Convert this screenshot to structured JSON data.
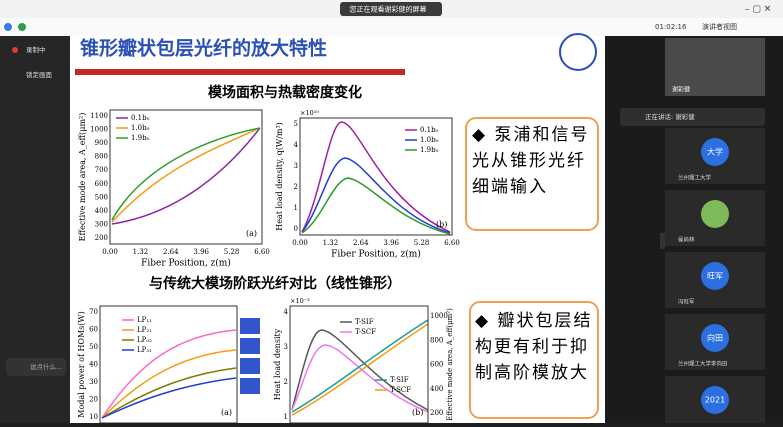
{
  "topbar": {
    "notice": "您正在观看谢彩健的屏幕",
    "timer": "01:02:16",
    "view": "演讲者视图"
  },
  "sidebar": {
    "recording": "录制中",
    "lock": "锁定画面",
    "comment": "说点什么..."
  },
  "slide": {
    "title": "锥形瓣状包层光纤的放大特性",
    "heading1": "模场面积与热载密度变化",
    "heading2": "与传统大模场阶跃光纤对比（线性锥形）",
    "note1": "◆ 泵浦和信号光从锥形光纤细端输入",
    "note2": "◆ 瓣状包层结构更有利于抑制高阶模放大",
    "plot_a": {
      "ylabel": "Effective mode area, A_eff(μm²)",
      "xlabel": "Fiber Position, z(m)",
      "yticks": [
        "200",
        "300",
        "400",
        "500",
        "600",
        "700",
        "800",
        "900",
        "1000",
        "1100"
      ],
      "xticks": [
        "0.00",
        "1.32",
        "2.64",
        "3.96",
        "5.28",
        "6.60"
      ],
      "legend": [
        "0.1b₀",
        "1.0b₀",
        "1.9b₀"
      ],
      "tag": "(a)"
    },
    "plot_b": {
      "ylabel": "Heat load density, q(W/m³)",
      "xlabel": "Fiber Position, z(m)",
      "scale": "×10¹⁰",
      "yticks": [
        "0",
        "1",
        "2",
        "3",
        "4",
        "5"
      ],
      "xticks": [
        "0.00",
        "1.32",
        "2.64",
        "3.96",
        "5.28",
        "6.60"
      ],
      "legend": [
        "0.1b₀",
        "1.0b₀",
        "1.9b₀"
      ],
      "tag": "(b)"
    },
    "plot_c": {
      "ylabel": "Modal power of HOMs(W)",
      "yticks": [
        "10",
        "20",
        "30",
        "40",
        "50",
        "60",
        "70"
      ],
      "legend": [
        "LP₁₁",
        "LP₂₁",
        "LP₀₂",
        "LP₃₁"
      ],
      "tag": "(a)"
    },
    "plot_d": {
      "ylabel": "Heat load density",
      "y2label": "Effective mode area, A_eff(μm²)",
      "scale": "×10⁻³",
      "yticks": [
        "1",
        "2",
        "3",
        "4"
      ],
      "y2ticks": [
        "200",
        "400",
        "600",
        "800",
        "1000"
      ],
      "legend": [
        "T-SIF",
        "T-SCF"
      ],
      "legend2": [
        "T-SIF",
        "T-SCF"
      ],
      "tag": "(b)"
    }
  },
  "participants": {
    "speaker": "谢彩健",
    "speaking": "正在讲话: 谢彩健",
    "tiles": [
      {
        "avatar": "大学",
        "name": "兰州理工大学"
      },
      {
        "avatar": "",
        "name": "侯尚林"
      },
      {
        "avatar": "旺军",
        "name": "冯旺军"
      },
      {
        "avatar": "向田",
        "name": "兰州理工大学李向田"
      },
      {
        "avatar": "2021",
        "name": ""
      }
    ]
  }
}
